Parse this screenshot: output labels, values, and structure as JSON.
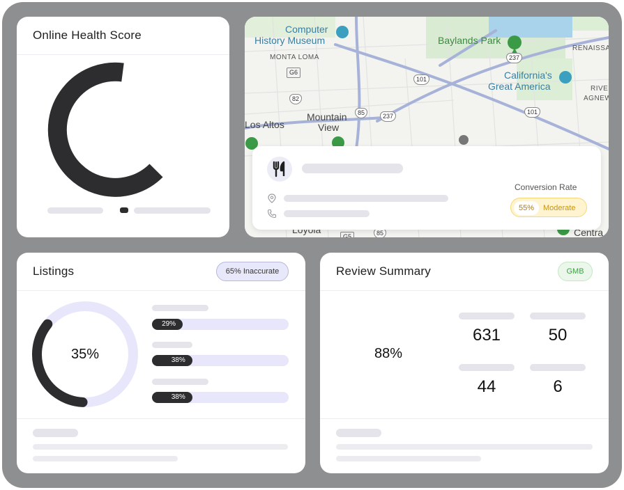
{
  "health_card": {
    "title": "Online Health Score"
  },
  "map": {
    "places": {
      "computer_history_1": "Computer",
      "computer_history_2": "History Museum",
      "baylands": "Baylands Park",
      "monta_loma": "MONTA LOMA",
      "california_1": "California's",
      "california_2": "Great America",
      "renaissance": "RENAISSA",
      "rivermark_1": "RIVE",
      "agnews": "AGNEW",
      "los_altos": "Los Altos",
      "mountain_view_1": "Mountain",
      "mountain_view_2": "View",
      "loyola": "Loyola",
      "centra": "Centra"
    },
    "shields": {
      "g6": "G6",
      "r82": "82",
      "r85": "85",
      "r237a": "237",
      "r237b": "237",
      "r101a": "101",
      "r101b": "101",
      "r85b": "85",
      "g5": "G5"
    }
  },
  "business_card": {
    "conversion_label": "Conversion Rate",
    "conversion_value": "55%",
    "conversion_level": "Moderate"
  },
  "listings": {
    "title": "Listings",
    "badge": "65% Inaccurate",
    "donut_value": 35,
    "donut_label": "35%",
    "bars": [
      {
        "value": 29,
        "label": "29%"
      },
      {
        "value": 38,
        "label": "38%"
      },
      {
        "value": 38,
        "label": "38%"
      }
    ]
  },
  "review_summary": {
    "title": "Review Summary",
    "badge": "GMB",
    "score": "88%",
    "stats": [
      "631",
      "50",
      "44",
      "6"
    ]
  },
  "colors": {
    "frame": "#8d8f91",
    "dark": "#2d2d2f",
    "track": "#e7e6fb",
    "badge_purple_bg": "#e8e8fb",
    "badge_green_bg": "#eaf7ea",
    "badge_green_text": "#3fa047",
    "moderate_bg": "#fff4cf"
  }
}
